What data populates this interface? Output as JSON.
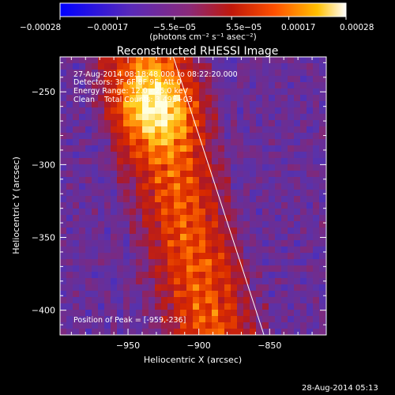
{
  "chart_data": {
    "type": "heatmap",
    "title": "Reconstructed RHESSI Image",
    "xlabel": "Heliocentric X (arcsec)",
    "ylabel": "Heliocentric Y (arcsec)",
    "xlim": [
      -998,
      -810
    ],
    "ylim": [
      -417,
      -226
    ],
    "x_ticks": [
      -950,
      -900,
      -850
    ],
    "y_ticks": [
      -250,
      -300,
      -350,
      -400
    ],
    "x_tick_labels": [
      "−950",
      "−900",
      "−850"
    ],
    "y_tick_labels": [
      "−250",
      "−300",
      "−350",
      "−400"
    ],
    "colorbar": {
      "range": [
        -0.00028,
        0.00028
      ],
      "tick_labels": [
        "−0.00028",
        "−0.00017",
        "−5.5e−05",
        "5.5e−05",
        "0.00017",
        "0.00028"
      ],
      "unit": "(photons cm⁻² s⁻¹ asec⁻²)"
    },
    "annotations": [
      "27-Aug-2014 08:18:48.000 to 08:22:20.000",
      "Detectors: 3F 6F 8F 9F, Att 0",
      "Energy Range: 12.0 - 25.0 keV",
      "Clean    Total Counts: 3.49E+03"
    ],
    "peak_label": "Position of Peak = [-959,-236]",
    "peak": [
      -959,
      -236
    ],
    "limb_line": [
      [
        -918,
        -226
      ],
      [
        -854,
        -417
      ]
    ]
  },
  "footer": {
    "timestamp": "28-Aug-2014 05:13"
  }
}
